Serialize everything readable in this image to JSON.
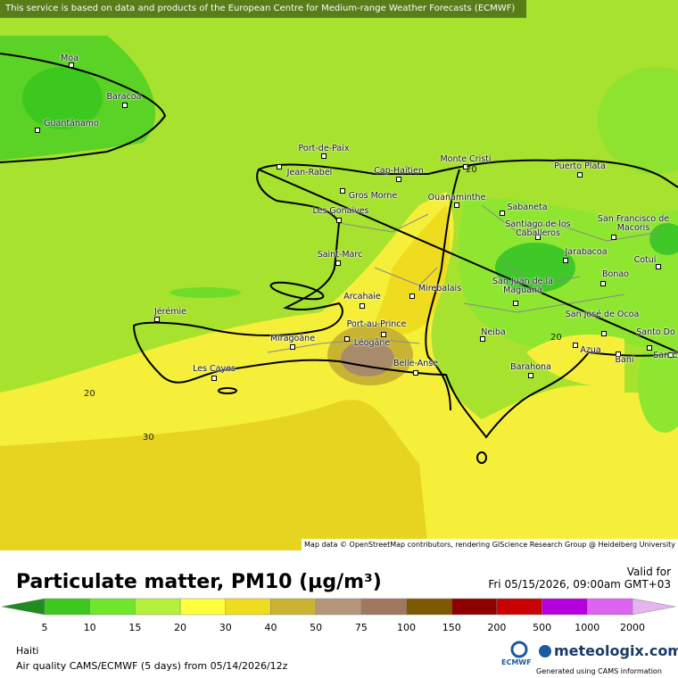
{
  "banner": "This service is based on data and products of the European Centre for Medium-range Weather Forecasts (ECMWF)",
  "map": {
    "cities": [
      "Moa",
      "Baracoa",
      "Guantánamo",
      "Port-de-Paix",
      "Jean-Rabel",
      "Cap-Haïtien",
      "Monte Cristi",
      "Puerto Plata",
      "Gros Morne",
      "Ouanaminthe",
      "Sabaneta",
      "Les Gonaïves",
      "Santiago de los Caballeros",
      "San Francisco de Macoris",
      "Saint-Marc",
      "Jarabacoa",
      "Cotuí",
      "Bonao",
      "Arcahaie",
      "Mirebalais",
      "San Juan de la Maguana",
      "Jérémie",
      "Port-au-Prince",
      "San José de Ocoa",
      "Santo Do",
      "Miragoâne",
      "Neiba",
      "Léogâne",
      "Azua",
      "San Cr",
      "Baní",
      "Belle-Anse",
      "Barahona",
      "Les Cayes"
    ],
    "contour_labels": [
      "20",
      "20",
      "20",
      "30"
    ],
    "attribution": "Map data © OpenStreetMap contributors, rendering GIScience Research Group @ Heidelberg University"
  },
  "legend": {
    "title": "Particulate matter, PM10 (µg/m³)",
    "valid_label": "Valid for",
    "valid_time": "Fri 05/15/2026, 09:00am GMT+03",
    "ticks": [
      5,
      10,
      15,
      20,
      30,
      40,
      50,
      75,
      100,
      150,
      200,
      500,
      1000,
      2000
    ],
    "colors": [
      "#1f8c1f",
      "#3cc81e",
      "#6ee62a",
      "#b4f03c",
      "#ffff3c",
      "#f0dc1e",
      "#c8b432",
      "#b49678",
      "#a07860",
      "#7d5a00",
      "#8c0000",
      "#c80000",
      "#b400dc",
      "#dc64f0",
      "#e6b4f0"
    ]
  },
  "footer": {
    "region": "Haiti",
    "product": "Air quality CAMS/ECMWF (5 days) from 05/14/2026/12z",
    "ecmwf": "ECMWF",
    "brand": "meteologix.com",
    "credit": "Generated using CAMS information"
  }
}
